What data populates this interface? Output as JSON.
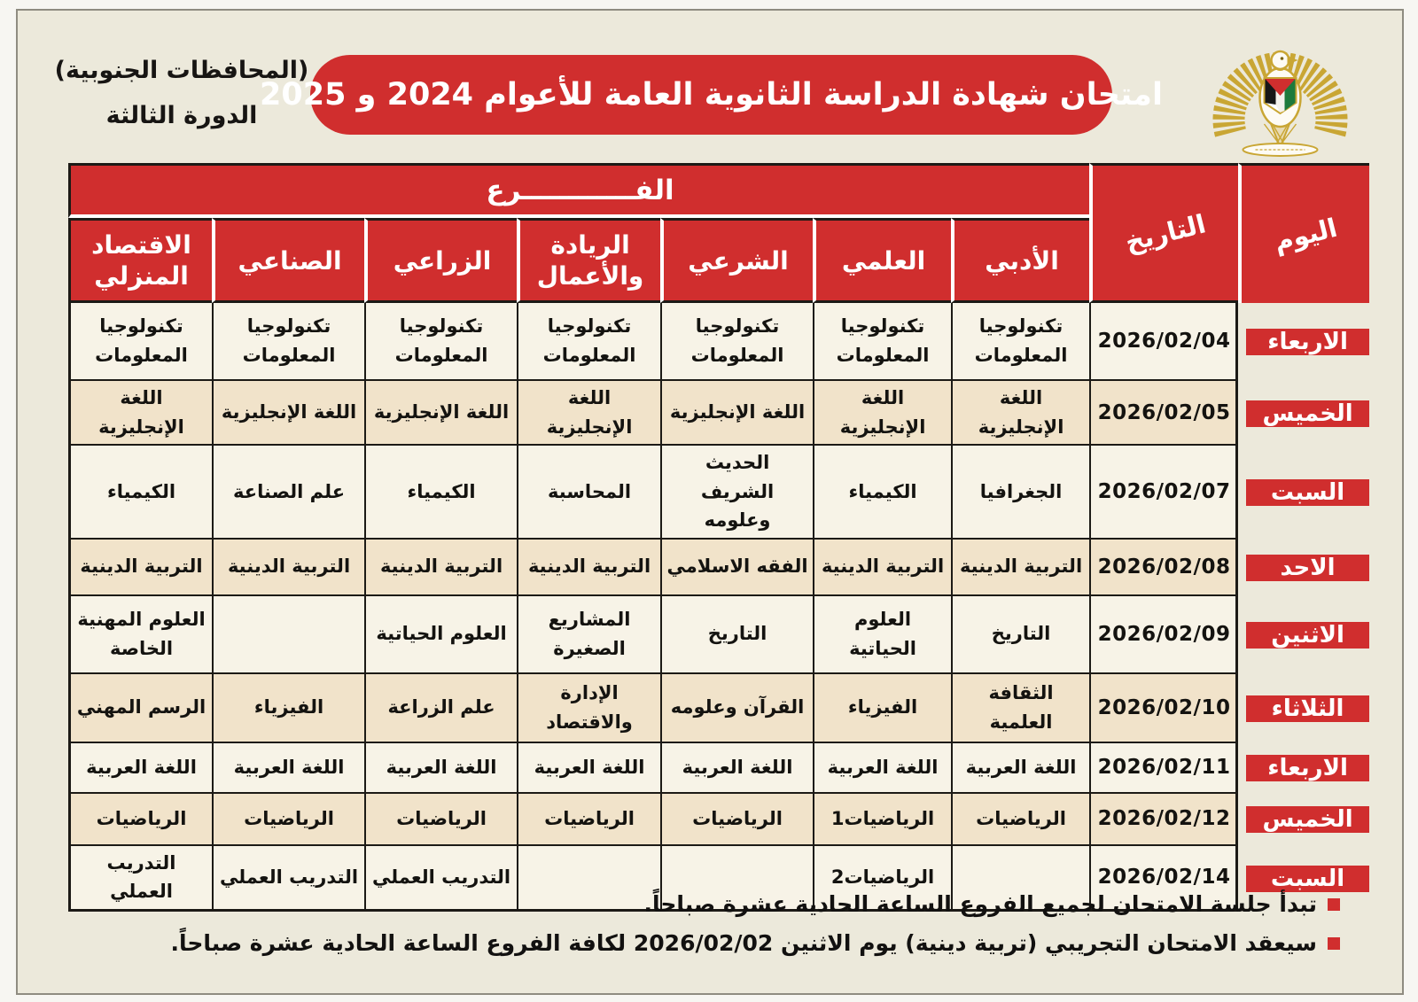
{
  "meta": {
    "region_label": "(المحافظات الجنوبية)",
    "session_label": "الدورة الثالثة",
    "title": "امتحان شهادة الدراسة الثانوية العامة للأعوام 2024 و 2025"
  },
  "colors": {
    "accent_red": "#d02e2e",
    "page_background": "#ece9db",
    "row_light": "#f7f3e7",
    "row_beige": "#f1e3ca",
    "grid_dark": "#1c1a16",
    "emblem_gold": "#c9a634"
  },
  "table": {
    "branch_band_label": "الفــــــــــــرع",
    "date_header": "التاريخ",
    "day_header": "اليوم",
    "branch_headers": [
      "الأدبي",
      "العلمي",
      "الشرعي",
      "الريادة والأعمال",
      "الزراعي",
      "الصناعي",
      "الاقتصاد المنزلي"
    ],
    "rows": [
      {
        "day": "الاربعاء",
        "date": "2026/02/04",
        "subjects": [
          "تكنولوجيا المعلومات",
          "تكنولوجيا المعلومات",
          "تكنولوجيا المعلومات",
          "تكنولوجيا المعلومات",
          "تكنولوجيا المعلومات",
          "تكنولوجيا المعلومات",
          "تكنولوجيا المعلومات"
        ]
      },
      {
        "day": "الخميس",
        "date": "2026/02/05",
        "subjects": [
          "اللغة الإنجليزية",
          "اللغة الإنجليزية",
          "اللغة الإنجليزية",
          "اللغة الإنجليزية",
          "اللغة الإنجليزية",
          "اللغة الإنجليزية",
          "اللغة الإنجليزية"
        ]
      },
      {
        "day": "السبت",
        "date": "2026/02/07",
        "subjects": [
          "الجغرافيا",
          "الكيمياء",
          "الحديث الشريف وعلومه",
          "المحاسبة",
          "الكيمياء",
          "علم الصناعة",
          "الكيمياء"
        ]
      },
      {
        "day": "الاحد",
        "date": "2026/02/08",
        "subjects": [
          "التربية الدينية",
          "التربية الدينية",
          "الفقه الاسلامي",
          "التربية الدينية",
          "التربية الدينية",
          "التربية الدينية",
          "التربية الدينية"
        ]
      },
      {
        "day": "الاثنين",
        "date": "2026/02/09",
        "subjects": [
          "التاريخ",
          "العلوم الحياتية",
          "التاريخ",
          "المشاريع الصغيرة",
          "العلوم الحياتية",
          "",
          "العلوم المهنية الخاصة"
        ]
      },
      {
        "day": "الثلاثاء",
        "date": "2026/02/10",
        "subjects": [
          "الثقافة العلمية",
          "الفيزياء",
          "القرآن وعلومه",
          "الإدارة والاقتصاد",
          "علم الزراعة",
          "الفيزياء",
          "الرسم المهني"
        ]
      },
      {
        "day": "الاربعاء",
        "date": "2026/02/11",
        "subjects": [
          "اللغة العربية",
          "اللغة العربية",
          "اللغة العربية",
          "اللغة العربية",
          "اللغة العربية",
          "اللغة العربية",
          "اللغة العربية"
        ]
      },
      {
        "day": "الخميس",
        "date": "2026/02/12",
        "subjects": [
          "الرياضيات",
          "الرياضيات1",
          "الرياضيات",
          "الرياضيات",
          "الرياضيات",
          "الرياضيات",
          "الرياضيات"
        ]
      },
      {
        "day": "السبت",
        "date": "2026/02/14",
        "subjects": [
          "",
          "الرياضيات2",
          "",
          "",
          "التدريب العملي",
          "التدريب العملي",
          "التدريب العملي"
        ]
      }
    ]
  },
  "notes": [
    {
      "text": "تبدأ جلسة الامتحان لجميع الفروع الساعة الحادية عشرة صباحاً."
    },
    {
      "text": "سيعقد الامتحان التجريبي (تربية دينية) يوم الاثنين 2026/02/02 لكافة الفروع الساعة الحادية عشرة صباحاً."
    }
  ]
}
